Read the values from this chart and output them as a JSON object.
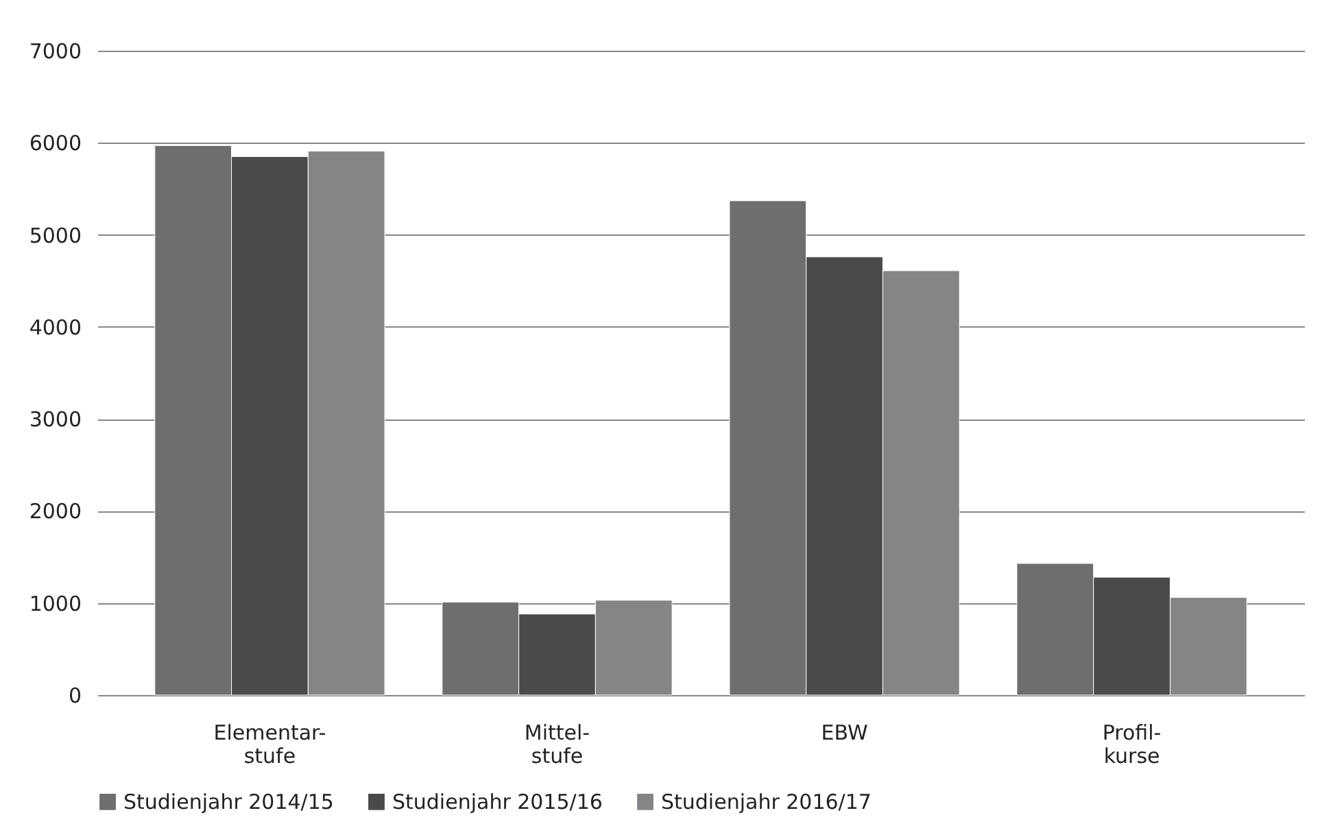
{
  "chart_data": {
    "type": "bar",
    "categories": [
      "Elementar-stufe",
      "Mittel-stufe",
      "EBW",
      "Profil-kurse"
    ],
    "series": [
      {
        "name": "Studienjahr 2014/15",
        "color": "#6e6e70",
        "values": [
          5970,
          1010,
          5370,
          1430
        ]
      },
      {
        "name": "Studienjahr 2015/16",
        "color": "#4a4a4c",
        "values": [
          5850,
          880,
          4760,
          1280
        ]
      },
      {
        "name": "Studienjahr 2016/17",
        "color": "#858588",
        "values": [
          5910,
          1030,
          4610,
          1060
        ]
      }
    ],
    "ylim": [
      0,
      7000
    ],
    "yticks": [
      0,
      1000,
      2000,
      3000,
      4000,
      5000,
      6000,
      7000
    ],
    "grid": "y",
    "legend": "bottom"
  }
}
